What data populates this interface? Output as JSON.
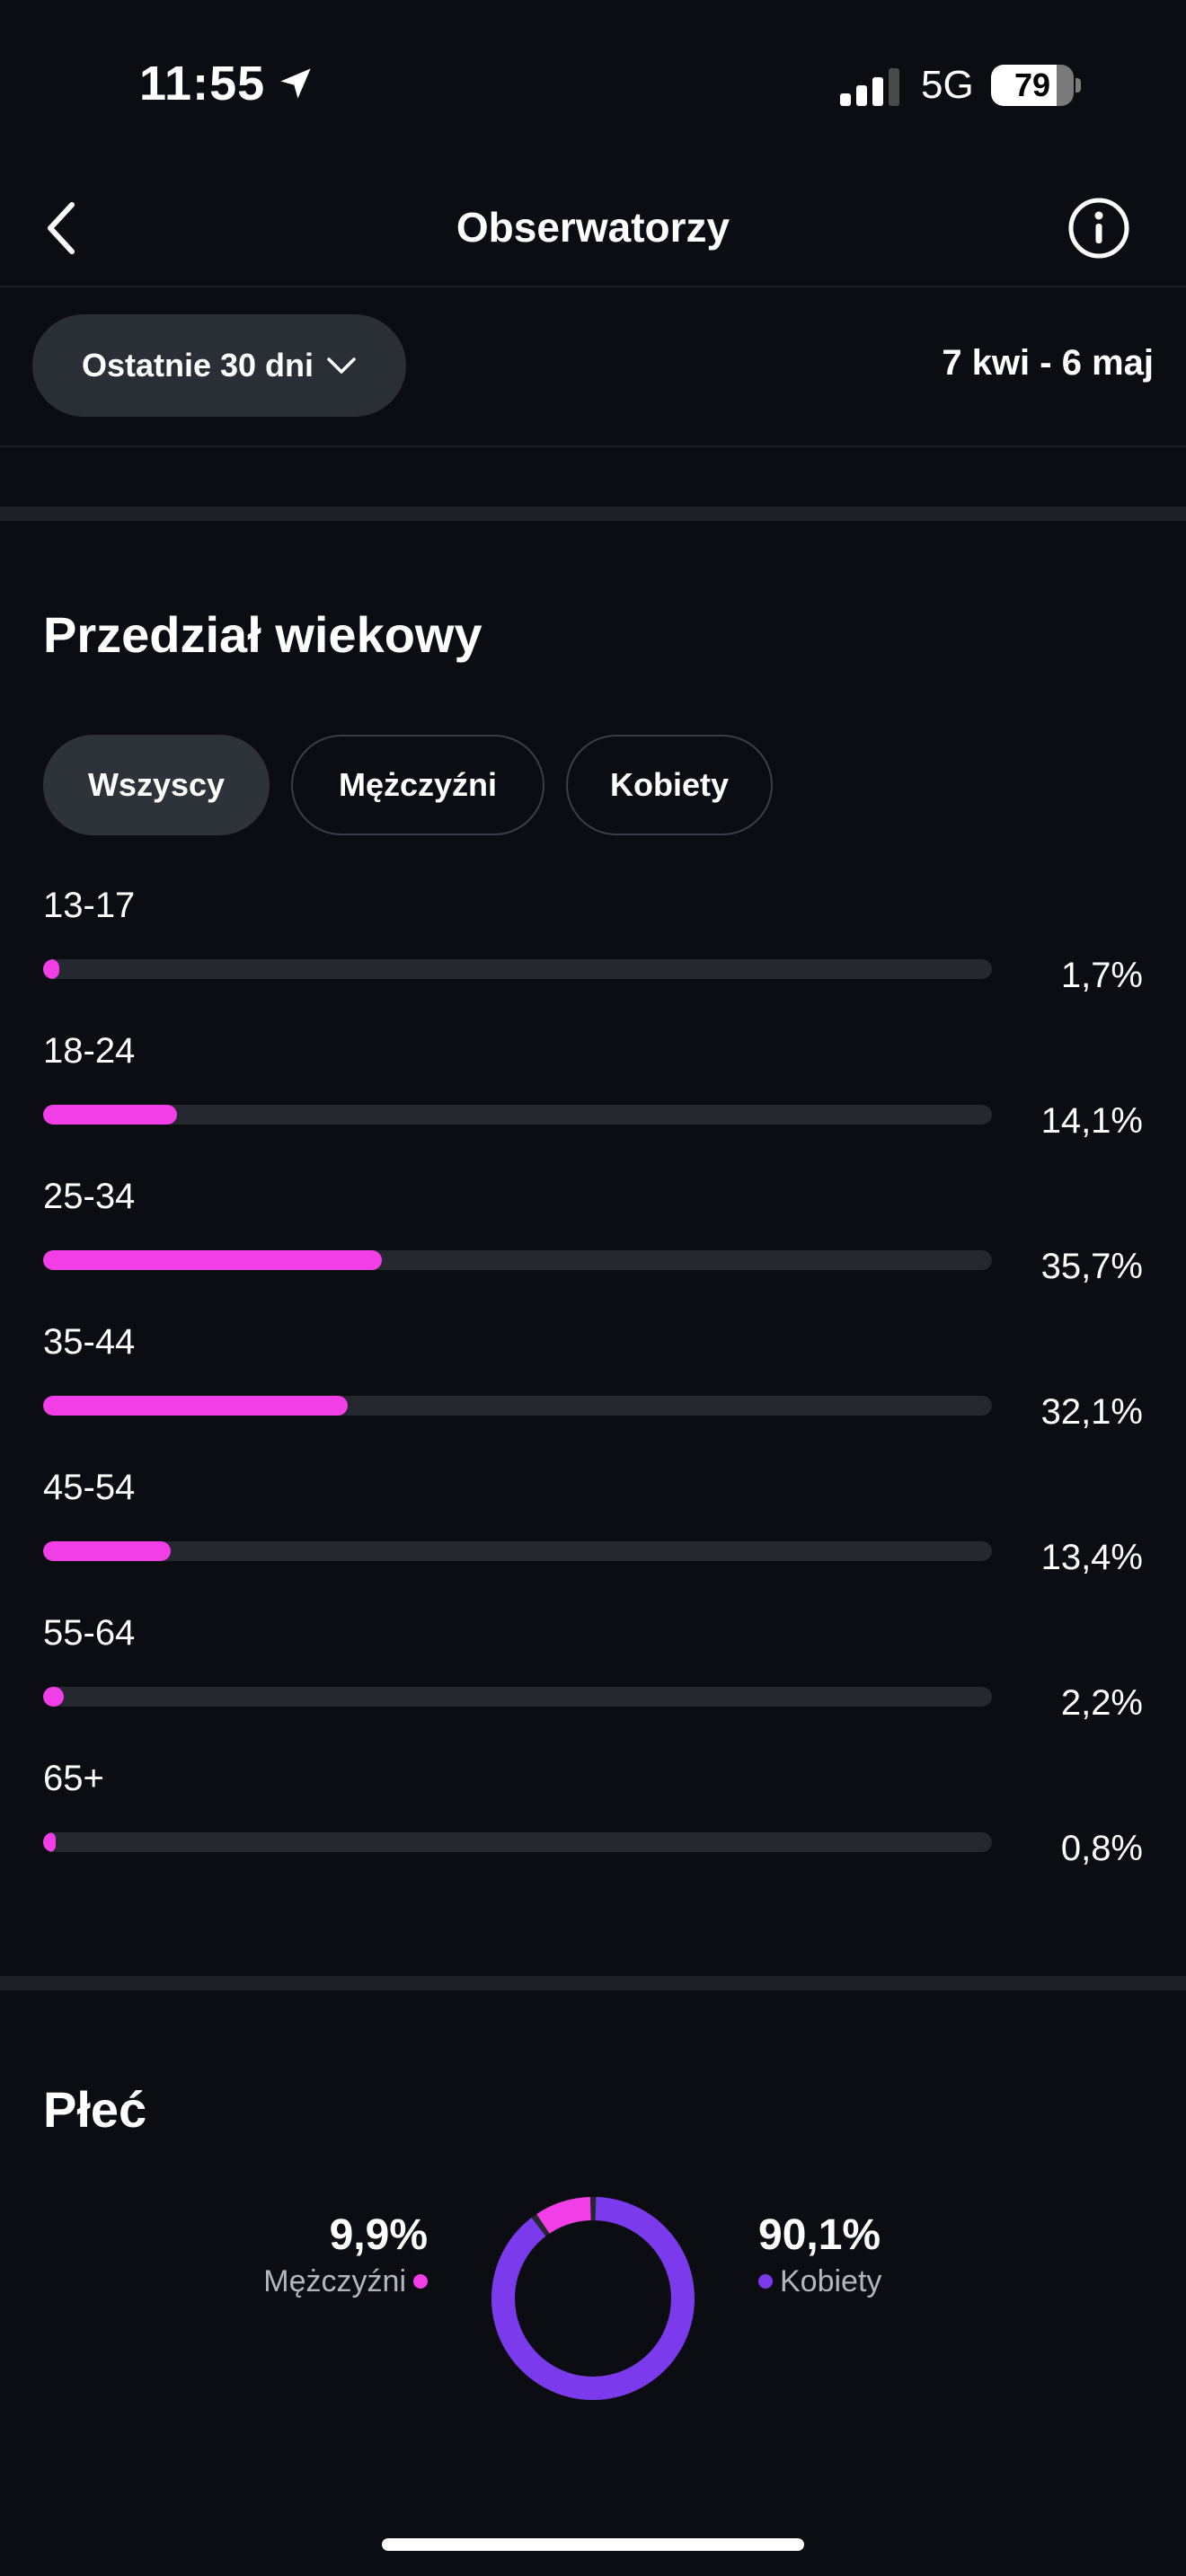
{
  "status_bar": {
    "time": "11:55",
    "network": "5G",
    "battery": "79",
    "battery_level": 0.79
  },
  "header": {
    "title": "Obserwatorzy"
  },
  "filter": {
    "period_label": "Ostatnie 30 dni",
    "date_range": "7 kwi - 6 maj"
  },
  "age_section": {
    "title": "Przedział wiekowy",
    "tabs": [
      {
        "label": "Wszyscy",
        "active": true
      },
      {
        "label": "Mężczyźni",
        "active": false
      },
      {
        "label": "Kobiety",
        "active": false
      }
    ],
    "rows": [
      {
        "label": "13-17",
        "value": "1,7%",
        "fraction": 0.017
      },
      {
        "label": "18-24",
        "value": "14,1%",
        "fraction": 0.141
      },
      {
        "label": "25-34",
        "value": "35,7%",
        "fraction": 0.357
      },
      {
        "label": "35-44",
        "value": "32,1%",
        "fraction": 0.321
      },
      {
        "label": "45-54",
        "value": "13,4%",
        "fraction": 0.134
      },
      {
        "label": "55-64",
        "value": "2,2%",
        "fraction": 0.022
      },
      {
        "label": "65+",
        "value": "0,8%",
        "fraction": 0.008
      }
    ]
  },
  "gender_section": {
    "title": "Płeć",
    "male": {
      "value": "9,9%",
      "label": "Mężczyźni",
      "fraction": 0.099
    },
    "female": {
      "value": "90,1%",
      "label": "Kobiety",
      "fraction": 0.901
    }
  },
  "colors": {
    "background": "#0b0d12",
    "accent_pink": "#f23ee6",
    "accent_purple": "#7c3aed",
    "track": "#25282f",
    "chip": "#2a2e35"
  },
  "icons": {
    "back": "chevron-left-icon",
    "info": "info-icon",
    "dropdown": "chevron-down-icon",
    "location": "location-arrow-icon",
    "signal": "cellular-signal-icon"
  }
}
